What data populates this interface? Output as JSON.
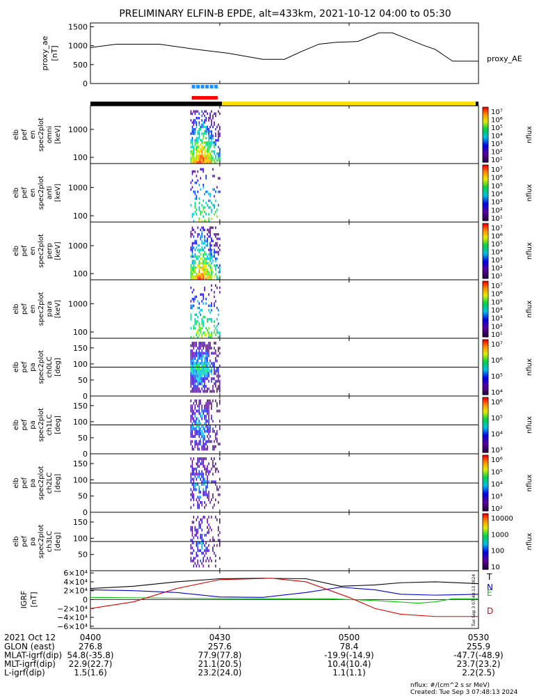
{
  "title": "PRELIMINARY ELFIN-B EPDE, alt=433km, 2021-10-12 04:00 to 05:30",
  "chart_data": [
    {
      "type": "line",
      "panel": "proxy_ae",
      "ylabel": "proxy_ae",
      "yunit": "[nT]",
      "legend": "proxy_AE",
      "yticks": [
        "1500",
        "1000",
        "500",
        "0"
      ],
      "ylim": [
        0,
        1600
      ],
      "x_min": [
        0,
        6,
        16,
        24,
        32,
        40,
        45,
        49,
        53,
        57,
        62,
        67,
        70,
        74,
        77,
        80,
        84,
        90
      ],
      "values": [
        950,
        1040,
        1040,
        910,
        800,
        640,
        640,
        850,
        1040,
        1090,
        1110,
        1340,
        1340,
        1160,
        1020,
        900,
        590,
        590
      ]
    },
    {
      "type": "heatmap",
      "panel": "elb_pef_en_spec2plot_omni",
      "ylabel": [
        "elb",
        "pef",
        "en",
        "spec2plot",
        "omni"
      ],
      "yunit": "[keV]",
      "yscale": "log",
      "yticks": [
        "1000",
        "100"
      ],
      "ylim": [
        60,
        7000
      ],
      "colorbar": {
        "label": "nflux",
        "ticks": [
          "10⁷",
          "10⁶",
          "10⁵",
          "10⁴",
          "10³",
          "10²",
          "10¹"
        ]
      }
    },
    {
      "type": "heatmap",
      "panel": "elb_pef_en_spec2plot_anti",
      "ylabel": [
        "elb",
        "pef",
        "en",
        "spec2plot",
        "anti"
      ],
      "yunit": "[keV]",
      "yscale": "log",
      "yticks": [
        "1000",
        "100"
      ],
      "ylim": [
        60,
        7000
      ],
      "colorbar": {
        "label": "nflux",
        "ticks": [
          "10⁷",
          "10⁶",
          "10⁵",
          "10⁴",
          "10³",
          "10²",
          "10¹"
        ]
      }
    },
    {
      "type": "heatmap",
      "panel": "elb_pef_en_spec2plot_perp",
      "ylabel": [
        "elb",
        "pef",
        "en",
        "spec2plot",
        "perp"
      ],
      "yunit": "[keV]",
      "yscale": "log",
      "yticks": [
        "1000",
        "100"
      ],
      "ylim": [
        60,
        7000
      ],
      "colorbar": {
        "label": "nflux",
        "ticks": [
          "10⁷",
          "10⁶",
          "10⁵",
          "10⁴",
          "10³",
          "10²",
          "10¹"
        ]
      }
    },
    {
      "type": "heatmap",
      "panel": "elb_pef_en_spec2plot_para",
      "ylabel": [
        "elb",
        "pef",
        "en",
        "spec2plot",
        "para"
      ],
      "yunit": "[keV]",
      "yscale": "log",
      "yticks": [
        "1000",
        "100"
      ],
      "ylim": [
        60,
        7000
      ],
      "colorbar": {
        "label": "nflux",
        "ticks": [
          "10⁷",
          "10⁶",
          "10⁵",
          "10⁴",
          "10³",
          "10²",
          "10¹"
        ]
      }
    },
    {
      "type": "heatmap",
      "panel": "elb_pef_pa_spec2plot_ch0LC",
      "ylabel": [
        "elb",
        "pef",
        "pa",
        "spec2plot",
        "ch0LC"
      ],
      "yunit": "[deg]",
      "yticks": [
        "150",
        "100",
        "50",
        "0"
      ],
      "ylim": [
        0,
        180
      ],
      "hline": 90,
      "colorbar": {
        "label": "nflux",
        "ticks": [
          "10⁷",
          "10⁶",
          "10⁵",
          "10⁴"
        ]
      }
    },
    {
      "type": "heatmap",
      "panel": "elb_pef_pa_spec2plot_ch1LC",
      "ylabel": [
        "elb",
        "pef",
        "pa",
        "spec2plot",
        "ch1LC"
      ],
      "yunit": "[deg]",
      "yticks": [
        "150",
        "100",
        "50",
        "0"
      ],
      "ylim": [
        0,
        180
      ],
      "hline": 90,
      "colorbar": {
        "label": "nflux",
        "ticks": [
          "10⁶",
          "10⁵",
          "10⁴",
          "10³"
        ]
      }
    },
    {
      "type": "heatmap",
      "panel": "elb_pef_pa_spec2plot_ch2LC",
      "ylabel": [
        "elb",
        "pef",
        "pa",
        "spec2plot",
        "ch2LC"
      ],
      "yunit": "[deg]",
      "yticks": [
        "150",
        "100",
        "50",
        "0"
      ],
      "ylim": [
        0,
        180
      ],
      "hline": 90,
      "colorbar": {
        "label": "nflux",
        "ticks": [
          "10⁶",
          "10⁵",
          "10⁴",
          "10³",
          "10²"
        ]
      }
    },
    {
      "type": "heatmap",
      "panel": "elb_pef_pa_spec2plot_ch3LC",
      "ylabel": [
        "elb",
        "pef",
        "pa",
        "spec2plot",
        "ch3LC"
      ],
      "yunit": "[deg]",
      "yticks": [
        "150",
        "100",
        "50"
      ],
      "ylim": [
        0,
        180
      ],
      "hline": 90,
      "colorbar": {
        "label": "nflux",
        "ticks": [
          "10000",
          "1000",
          "100",
          "10"
        ]
      }
    },
    {
      "type": "line",
      "panel": "IGRF",
      "ylabel": "IGRF",
      "yunit": "[nT]",
      "yticks": [
        "6×10⁴",
        "4×10⁴",
        "2×10⁴",
        "0",
        "−2×10⁴",
        "−4×10⁴",
        "−6×10⁴"
      ],
      "ylim": [
        -65000,
        65000
      ],
      "series": [
        {
          "name": "T",
          "color": "#000000",
          "x_min": [
            0,
            10,
            20,
            30,
            40,
            50,
            58,
            66,
            72,
            80,
            90
          ],
          "values": [
            25000,
            30000,
            40000,
            47000,
            48000,
            47000,
            30000,
            33000,
            38000,
            40000,
            36000
          ]
        },
        {
          "name": "N",
          "color": "#0000cc",
          "x_min": [
            0,
            10,
            20,
            30,
            40,
            50,
            58,
            66,
            72,
            80,
            90
          ],
          "values": [
            22000,
            20000,
            16000,
            6000,
            5000,
            16000,
            28000,
            22000,
            12000,
            10000,
            12000
          ]
        },
        {
          "name": "E",
          "color": "#00cc00",
          "x_min": [
            0,
            20,
            40,
            55,
            66,
            76,
            80,
            84,
            90
          ],
          "values": [
            5000,
            3000,
            2000,
            2000,
            -2000,
            -8000,
            -5000,
            2000,
            2000
          ]
        },
        {
          "name": "D",
          "color": "#dd0000",
          "x_min": [
            0,
            10,
            20,
            30,
            42,
            50,
            60,
            66,
            72,
            80,
            90
          ],
          "values": [
            -20000,
            -5000,
            25000,
            45000,
            48000,
            40000,
            5000,
            -20000,
            -33000,
            -38000,
            -38000
          ]
        }
      ]
    }
  ],
  "time_axis": {
    "row_label": "2021 Oct 12",
    "ticks": [
      {
        "label": "0400",
        "min": 0
      },
      {
        "label": "0430",
        "min": 30
      },
      {
        "label": "0500",
        "min": 60
      },
      {
        "label": "0530",
        "min": 90
      }
    ]
  },
  "ephemeris": [
    {
      "label": "GLON (east)",
      "values": [
        "276.8",
        "257.6",
        "78.4",
        "255.9"
      ]
    },
    {
      "label": "MLAT-igrf(dip)",
      "values": [
        "54.8(-35.8)",
        "77.9(77.8)",
        "-19.9(-14.9)",
        "-47.7(-48.9)"
      ]
    },
    {
      "label": "MLT-igrf(dip)",
      "values": [
        "22.9(22.7)",
        "21.1(20.5)",
        "10.4(10.4)",
        "23.7(23.2)"
      ]
    },
    {
      "label": "L-igrf(dip)",
      "values": [
        "1.5(1.6)",
        "23.2(24.0)",
        "1.1(1.1)",
        "2.2(2.5)"
      ]
    }
  ],
  "footer": {
    "units": "nflux: #/(cm^2 s sr MeV)",
    "created": "Created: Tue Sep  3 07:48:13 2024",
    "side_stamp": "Tue Sep  3 07:48:13 2024"
  },
  "colors": {
    "status_dark": "#000000",
    "status_bright": "#ffe000",
    "marker_blue": "#1e90ff",
    "marker_red": "#ff0000"
  }
}
